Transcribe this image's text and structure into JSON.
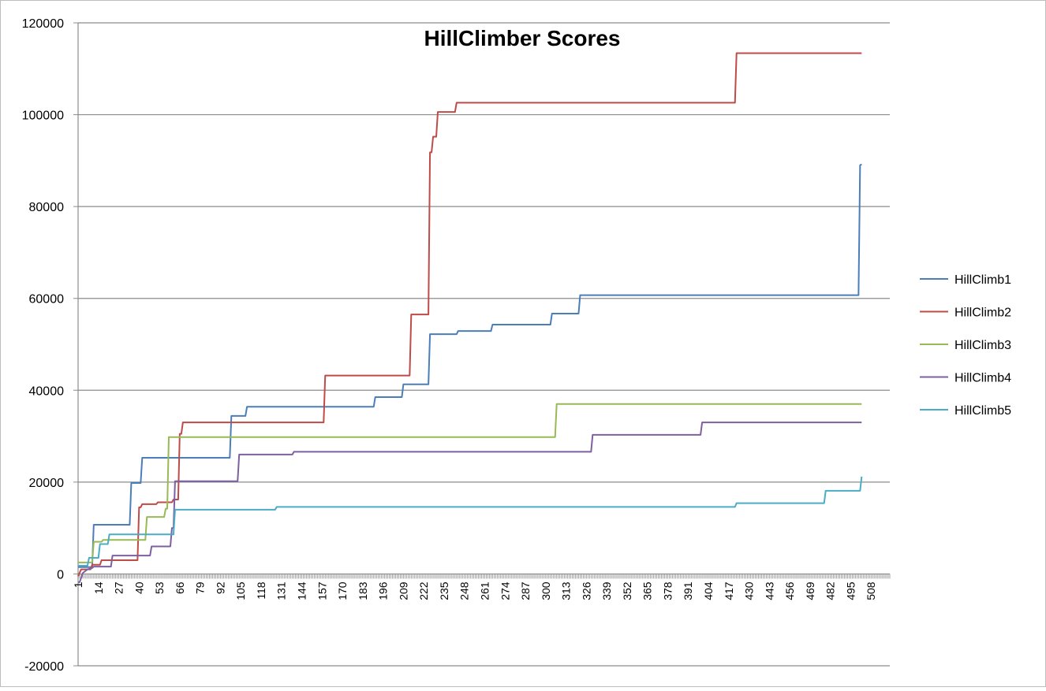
{
  "chart_data": {
    "type": "line",
    "title": "HillClimber Scores",
    "xlabel": "",
    "ylabel": "",
    "ylim": [
      -20000,
      120000
    ],
    "xlim": [
      1,
      520
    ],
    "yticks": [
      -20000,
      0,
      20000,
      40000,
      60000,
      80000,
      100000,
      120000
    ],
    "xticks": [
      1,
      14,
      27,
      40,
      53,
      66,
      79,
      92,
      105,
      118,
      131,
      144,
      157,
      170,
      183,
      196,
      209,
      222,
      235,
      248,
      261,
      274,
      287,
      300,
      313,
      326,
      339,
      352,
      365,
      378,
      391,
      404,
      417,
      430,
      443,
      456,
      469,
      482,
      495,
      508
    ],
    "grid": "horizontal",
    "legend_position": "right",
    "series": [
      {
        "name": "HillClimb1",
        "color": "#4a7ebb",
        "points": [
          [
            1,
            1500
          ],
          [
            10,
            1500
          ],
          [
            11,
            10700
          ],
          [
            34,
            10700
          ],
          [
            35,
            19800
          ],
          [
            41,
            19800
          ],
          [
            42,
            25300
          ],
          [
            98,
            25300
          ],
          [
            99,
            34400
          ],
          [
            108,
            34400
          ],
          [
            109,
            36400
          ],
          [
            190,
            36400
          ],
          [
            191,
            38500
          ],
          [
            208,
            38500
          ],
          [
            209,
            41300
          ],
          [
            225,
            41300
          ],
          [
            226,
            52200
          ],
          [
            243,
            52200
          ],
          [
            244,
            52900
          ],
          [
            265,
            52900
          ],
          [
            266,
            54300
          ],
          [
            303,
            54300
          ],
          [
            304,
            56700
          ],
          [
            321,
            56700
          ],
          [
            322,
            60700
          ],
          [
            500,
            60700
          ],
          [
            501,
            89000
          ],
          [
            502,
            89200
          ]
        ]
      },
      {
        "name": "HillClimb2",
        "color": "#be4b48",
        "points": [
          [
            1,
            -500
          ],
          [
            3,
            1000
          ],
          [
            9,
            1000
          ],
          [
            10,
            2000
          ],
          [
            15,
            2000
          ],
          [
            16,
            3000
          ],
          [
            39,
            3000
          ],
          [
            40,
            14500
          ],
          [
            41,
            14500
          ],
          [
            42,
            15200
          ],
          [
            51,
            15200
          ],
          [
            52,
            15600
          ],
          [
            61,
            15600
          ],
          [
            62,
            16200
          ],
          [
            65,
            16200
          ],
          [
            66,
            30500
          ],
          [
            67,
            30500
          ],
          [
            68,
            33000
          ],
          [
            158,
            33000
          ],
          [
            159,
            43200
          ],
          [
            213,
            43200
          ],
          [
            214,
            56500
          ],
          [
            225,
            56500
          ],
          [
            226,
            91800
          ],
          [
            227,
            91800
          ],
          [
            228,
            95200
          ],
          [
            230,
            95200
          ],
          [
            231,
            100600
          ],
          [
            242,
            100600
          ],
          [
            243,
            102600
          ],
          [
            421,
            102600
          ],
          [
            422,
            113400
          ],
          [
            502,
            113400
          ]
        ]
      },
      {
        "name": "HillClimb3",
        "color": "#98b954",
        "points": [
          [
            1,
            2500
          ],
          [
            10,
            2500
          ],
          [
            11,
            7000
          ],
          [
            16,
            7000
          ],
          [
            17,
            7400
          ],
          [
            44,
            7400
          ],
          [
            45,
            12400
          ],
          [
            56,
            12400
          ],
          [
            57,
            14200
          ],
          [
            58,
            14200
          ],
          [
            59,
            29800
          ],
          [
            306,
            29800
          ],
          [
            307,
            37000
          ],
          [
            502,
            37000
          ]
        ]
      },
      {
        "name": "HillClimb4",
        "color": "#7d60a0",
        "points": [
          [
            1,
            -1800
          ],
          [
            2,
            -1800
          ],
          [
            4,
            200
          ],
          [
            7,
            1000
          ],
          [
            10,
            1300
          ],
          [
            11,
            1600
          ],
          [
            22,
            1600
          ],
          [
            23,
            4000
          ],
          [
            47,
            4000
          ],
          [
            48,
            6000
          ],
          [
            60,
            6000
          ],
          [
            61,
            10000
          ],
          [
            62,
            10000
          ],
          [
            63,
            20200
          ],
          [
            103,
            20200
          ],
          [
            104,
            26000
          ],
          [
            138,
            26000
          ],
          [
            139,
            26600
          ],
          [
            329,
            26600
          ],
          [
            330,
            30300
          ],
          [
            399,
            30300
          ],
          [
            400,
            33000
          ],
          [
            502,
            33000
          ]
        ]
      },
      {
        "name": "HillClimb5",
        "color": "#4bacc6",
        "points": [
          [
            1,
            1800
          ],
          [
            7,
            1800
          ],
          [
            8,
            3500
          ],
          [
            14,
            3500
          ],
          [
            15,
            6500
          ],
          [
            20,
            6500
          ],
          [
            21,
            8600
          ],
          [
            62,
            8600
          ],
          [
            63,
            14000
          ],
          [
            127,
            14000
          ],
          [
            128,
            14600
          ],
          [
            421,
            14600
          ],
          [
            422,
            15400
          ],
          [
            478,
            15400
          ],
          [
            479,
            18100
          ],
          [
            501,
            18100
          ],
          [
            502,
            21200
          ]
        ]
      }
    ]
  }
}
